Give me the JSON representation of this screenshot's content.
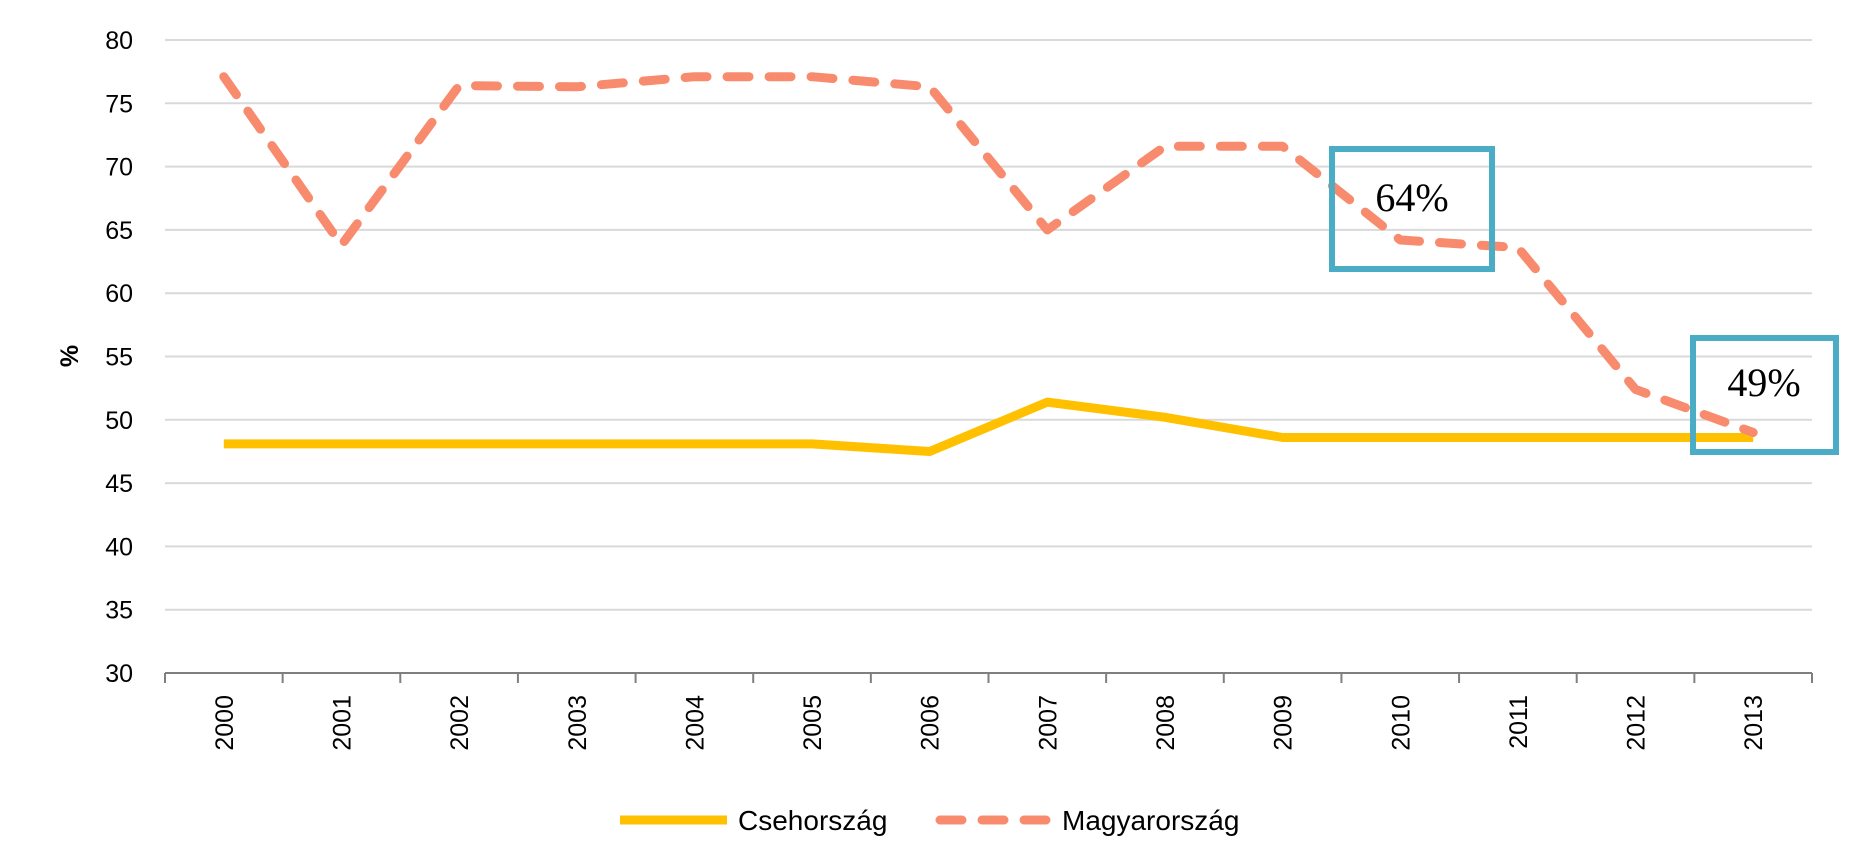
{
  "chart_data": {
    "type": "line",
    "title": "",
    "xlabel": "",
    "ylabel": "%",
    "ylim": [
      30,
      80
    ],
    "yticks": [
      30,
      35,
      40,
      45,
      50,
      55,
      60,
      65,
      70,
      75,
      80
    ],
    "grid": true,
    "x": [
      "2000",
      "2001",
      "2002",
      "2003",
      "2004",
      "2005",
      "2006",
      "2007",
      "2008",
      "2009",
      "2010",
      "2011",
      "2012",
      "2013"
    ],
    "series": [
      {
        "name": "Csehország",
        "color": "#ffc000",
        "dash": "solid",
        "values": [
          48.1,
          48.1,
          48.1,
          48.1,
          48.1,
          48.1,
          47.5,
          51.4,
          50.2,
          48.6,
          48.6,
          48.6,
          48.6,
          48.6
        ]
      },
      {
        "name": "Magyarország",
        "color": "#f88b6e",
        "dash": "dashed",
        "values": [
          77.1,
          63.8,
          76.4,
          76.3,
          77.1,
          77.1,
          76.3,
          65.0,
          71.6,
          71.6,
          64.2,
          63.6,
          52.4,
          49.0
        ]
      }
    ],
    "legend": {
      "position": "bottom"
    },
    "annotations": [
      {
        "text": "64%",
        "x": "2010",
        "box_color": "#4bacc6"
      },
      {
        "text": "49%",
        "x": "2013",
        "box_color": "#4bacc6"
      }
    ]
  }
}
